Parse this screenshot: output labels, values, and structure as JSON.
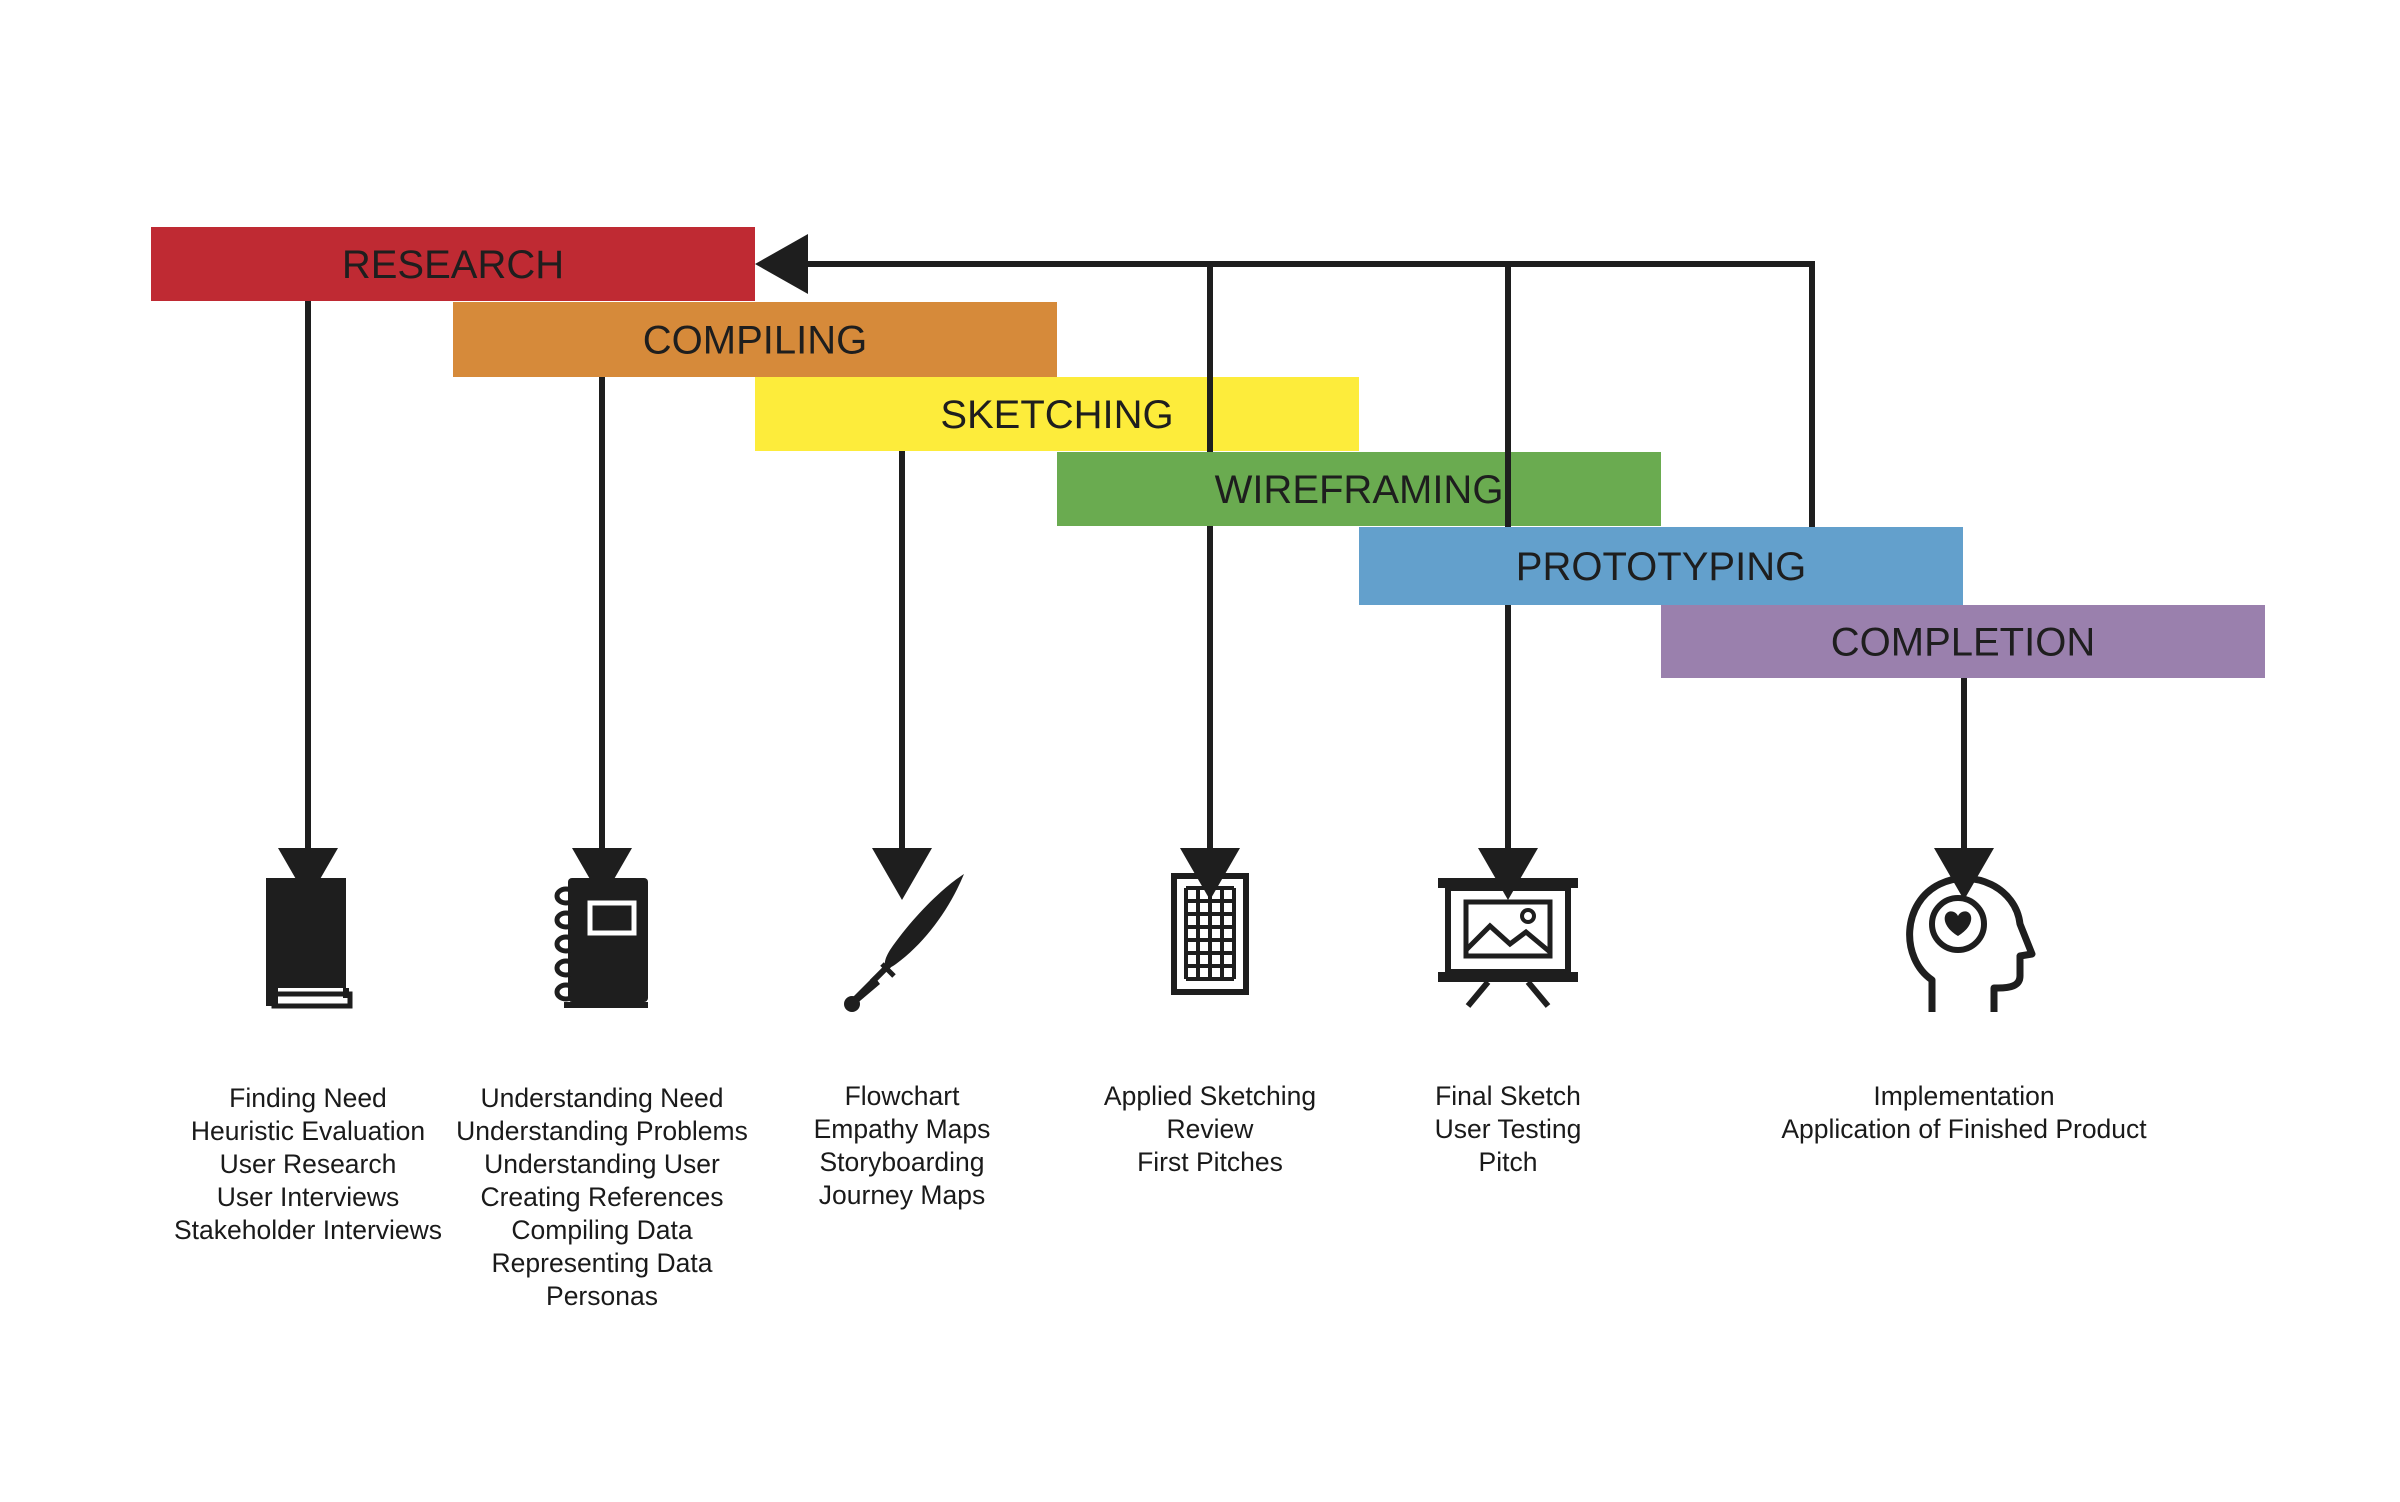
{
  "phases": [
    {
      "id": "research",
      "label": "RESEARCH",
      "color": "#bf2a33"
    },
    {
      "id": "compiling",
      "label": "COMPILING",
      "color": "#d68a3a"
    },
    {
      "id": "sketching",
      "label": "SKETCHING",
      "color": "#fdec3b"
    },
    {
      "id": "wireframing",
      "label": "WIREFRAMING",
      "color": "#6aab50"
    },
    {
      "id": "prototyping",
      "label": "PROTOTYPING",
      "color": "#63a0cc"
    },
    {
      "id": "completion",
      "label": "COMPLETION",
      "color": "#9a80ad"
    }
  ],
  "columns": [
    {
      "icon": "book-icon",
      "items": [
        "Finding Need",
        "Heuristic Evaluation",
        "User Research",
        "User Interviews",
        "Stakeholder Interviews"
      ]
    },
    {
      "icon": "notebook-icon",
      "items": [
        "Understanding Need",
        "Understanding Problems",
        "Understanding User",
        "Creating References",
        "Compiling Data",
        "Representing Data",
        "Personas"
      ]
    },
    {
      "icon": "quill-icon",
      "items": [
        "Flowchart",
        "Empathy Maps",
        "Storyboarding",
        "Journey Maps"
      ]
    },
    {
      "icon": "grid-frame-icon",
      "items": [
        "Applied Sketching",
        "Review",
        "First Pitches"
      ]
    },
    {
      "icon": "easel-icon",
      "items": [
        "Final Sketch",
        "User Testing",
        "Pitch"
      ]
    },
    {
      "icon": "head-heart-icon",
      "items": [
        "Implementation",
        "Application of Finished Product"
      ]
    }
  ],
  "colors": {
    "line": "#1e1e1e",
    "text": "#1a1a1a"
  }
}
